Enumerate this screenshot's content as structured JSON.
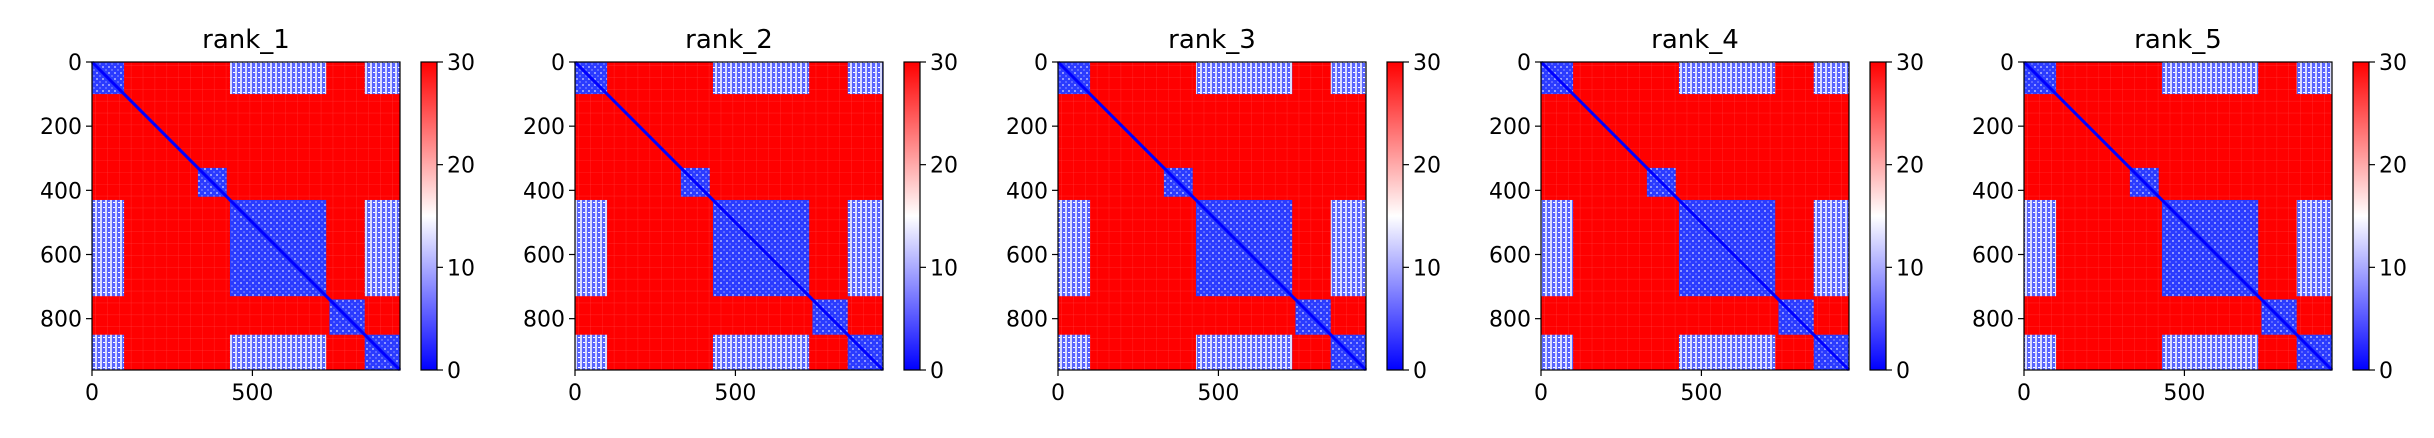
{
  "figure": {
    "background": "#ffffff",
    "colormap": {
      "name": "bwr",
      "low": "#0000ff",
      "mid": "#ffffff",
      "high": "#ff0000"
    }
  },
  "chart_data": [
    {
      "type": "heatmap",
      "title": "rank_1",
      "matrix_size": 960,
      "x_ticks": [
        0,
        500
      ],
      "y_ticks": [
        0,
        200,
        400,
        600,
        800
      ],
      "xlim": [
        0,
        960
      ],
      "ylim": [
        960,
        0
      ],
      "colorbar": {
        "range": [
          0,
          30
        ],
        "ticks": [
          0,
          10,
          20,
          30
        ]
      },
      "low_value_blocks": [
        [
          0,
          100
        ],
        [
          330,
          420
        ],
        [
          430,
          730
        ],
        [
          740,
          850
        ],
        [
          850,
          960
        ]
      ],
      "cross_low_pairs": [
        [
          0,
          100,
          430,
          730
        ],
        [
          0,
          100,
          850,
          960
        ],
        [
          430,
          730,
          850,
          960
        ]
      ]
    },
    {
      "type": "heatmap",
      "title": "rank_2",
      "matrix_size": 960,
      "x_ticks": [
        0,
        500
      ],
      "y_ticks": [
        0,
        200,
        400,
        600,
        800
      ],
      "xlim": [
        0,
        960
      ],
      "ylim": [
        960,
        0
      ],
      "colorbar": {
        "range": [
          0,
          30
        ],
        "ticks": [
          0,
          10,
          20,
          30
        ]
      },
      "low_value_blocks": [
        [
          0,
          100
        ],
        [
          330,
          420
        ],
        [
          430,
          730
        ],
        [
          740,
          850
        ],
        [
          850,
          960
        ]
      ],
      "cross_low_pairs": [
        [
          0,
          100,
          430,
          730
        ],
        [
          0,
          100,
          850,
          960
        ],
        [
          430,
          730,
          850,
          960
        ]
      ]
    },
    {
      "type": "heatmap",
      "title": "rank_3",
      "matrix_size": 960,
      "x_ticks": [
        0,
        500
      ],
      "y_ticks": [
        0,
        200,
        400,
        600,
        800
      ],
      "xlim": [
        0,
        960
      ],
      "ylim": [
        960,
        0
      ],
      "colorbar": {
        "range": [
          0,
          30
        ],
        "ticks": [
          0,
          10,
          20,
          30
        ]
      },
      "low_value_blocks": [
        [
          0,
          100
        ],
        [
          330,
          420
        ],
        [
          430,
          730
        ],
        [
          740,
          850
        ],
        [
          850,
          960
        ]
      ],
      "cross_low_pairs": [
        [
          0,
          100,
          430,
          730
        ],
        [
          0,
          100,
          850,
          960
        ],
        [
          430,
          730,
          850,
          960
        ]
      ]
    },
    {
      "type": "heatmap",
      "title": "rank_4",
      "matrix_size": 960,
      "x_ticks": [
        0,
        500
      ],
      "y_ticks": [
        0,
        200,
        400,
        600,
        800
      ],
      "xlim": [
        0,
        960
      ],
      "ylim": [
        960,
        0
      ],
      "colorbar": {
        "range": [
          0,
          30
        ],
        "ticks": [
          0,
          10,
          20,
          30
        ]
      },
      "low_value_blocks": [
        [
          0,
          100
        ],
        [
          330,
          420
        ],
        [
          430,
          730
        ],
        [
          740,
          850
        ],
        [
          850,
          960
        ]
      ],
      "cross_low_pairs": [
        [
          0,
          100,
          430,
          730
        ],
        [
          0,
          100,
          850,
          960
        ],
        [
          430,
          730,
          850,
          960
        ]
      ]
    },
    {
      "type": "heatmap",
      "title": "rank_5",
      "matrix_size": 960,
      "x_ticks": [
        0,
        500
      ],
      "y_ticks": [
        0,
        200,
        400,
        600,
        800
      ],
      "xlim": [
        0,
        960
      ],
      "ylim": [
        960,
        0
      ],
      "colorbar": {
        "range": [
          0,
          30
        ],
        "ticks": [
          0,
          10,
          20,
          30
        ]
      },
      "low_value_blocks": [
        [
          0,
          100
        ],
        [
          330,
          420
        ],
        [
          430,
          730
        ],
        [
          740,
          850
        ],
        [
          850,
          960
        ]
      ],
      "cross_low_pairs": [
        [
          0,
          100,
          430,
          730
        ],
        [
          0,
          100,
          850,
          960
        ],
        [
          430,
          730,
          850,
          960
        ]
      ]
    }
  ]
}
